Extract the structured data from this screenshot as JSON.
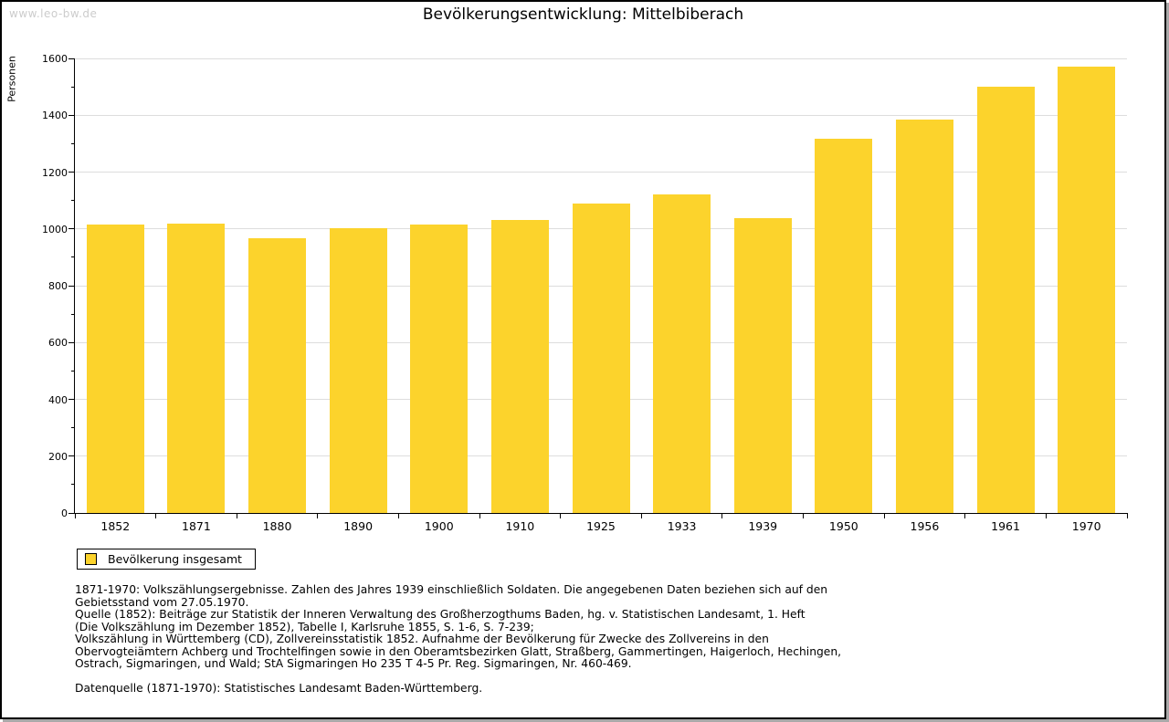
{
  "window": {
    "watermark": "www.leo-bw.de"
  },
  "chart_data": {
    "type": "bar",
    "title": "Bevölkerungsentwicklung: Mittelbiberach",
    "ylabel": "Personen",
    "xlabel": "",
    "categories": [
      "1852",
      "1871",
      "1880",
      "1890",
      "1900",
      "1910",
      "1925",
      "1933",
      "1939",
      "1950",
      "1956",
      "1961",
      "1970"
    ],
    "values": [
      1014,
      1018,
      966,
      1004,
      1016,
      1032,
      1090,
      1122,
      1038,
      1318,
      1386,
      1500,
      1570
    ],
    "ylim": [
      0,
      1600
    ],
    "ytick_step": 200,
    "yminor_step": 100,
    "grid": true,
    "bar_color": "#FCD32C",
    "gridline_color": "#dddddd",
    "legend_position": "bottom-left"
  },
  "legend": {
    "label": "Bevölkerung insgesamt"
  },
  "footer": {
    "lines": [
      "1871-1970: Volkszählungsergebnisse. Zahlen des Jahres 1939 einschließlich Soldaten. Die angegebenen Daten beziehen sich auf den",
      "Gebietsstand vom 27.05.1970.",
      "Quelle (1852): Beiträge zur Statistik der Inneren Verwaltung des Großherzogthums Baden, hg. v. Statistischen Landesamt, 1. Heft",
      "(Die Volkszählung im Dezember 1852), Tabelle I, Karlsruhe 1855, S. 1-6, S. 7-239;",
      "Volkszählung in Württemberg (CD), Zollvereinsstatistik 1852. Aufnahme der Bevölkerung für Zwecke des Zollvereins in den",
      "Obervogteiämtern Achberg und Trochtelfingen sowie in den Oberamtsbezirken Glatt, Straßberg, Gammertingen, Haigerloch, Hechingen,",
      "Ostrach, Sigmaringen, und Wald; StA Sigmaringen Ho 235 T 4-5 Pr. Reg. Sigmaringen, Nr. 460-469."
    ],
    "datasource": "Datenquelle (1871-1970): Statistisches Landesamt Baden-Württemberg."
  }
}
